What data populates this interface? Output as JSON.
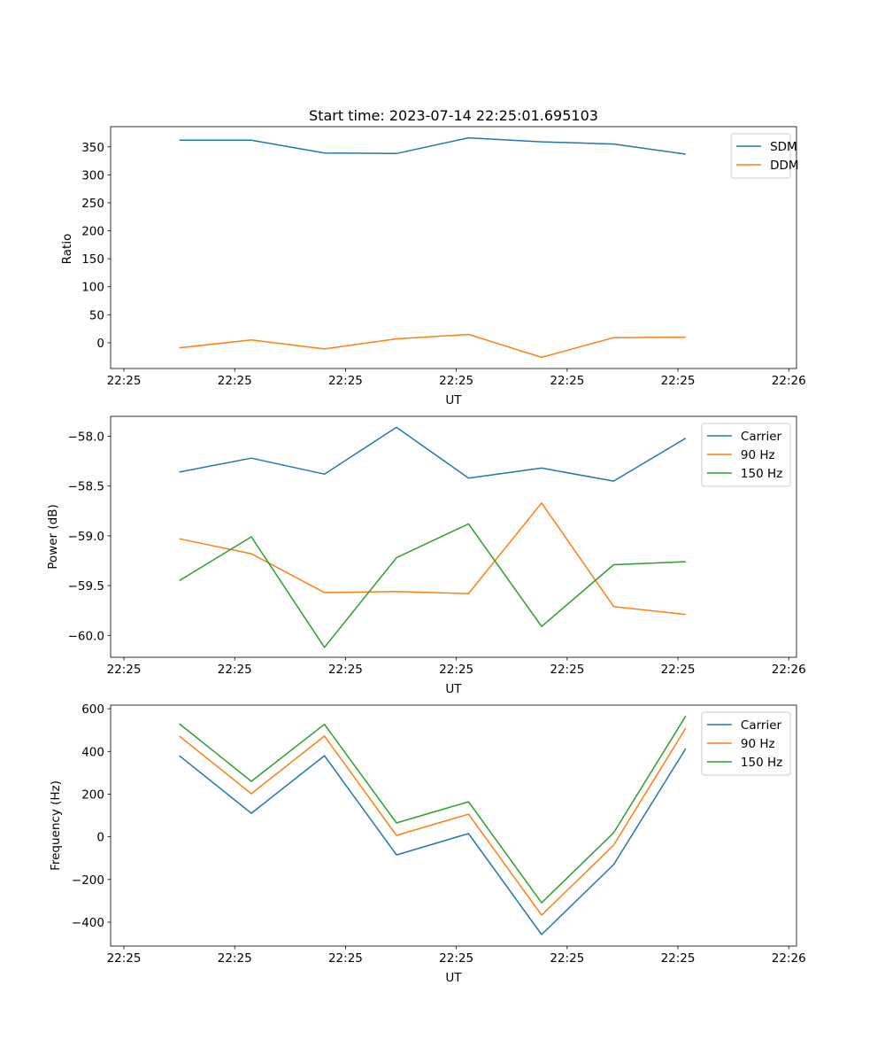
{
  "chart_data": [
    {
      "type": "line",
      "title": "Start time: 2023-07-14 22:25:01.695103",
      "xlabel": "UT",
      "ylabel": "Ratio",
      "x_unit": "seconds after 22:25:00",
      "x": [
        5.0,
        11.5,
        18.1,
        24.6,
        31.1,
        37.7,
        44.2,
        50.7
      ],
      "xlim": [
        -1.2,
        60.7
      ],
      "xticks": [
        0,
        10,
        20,
        30,
        40,
        50,
        60
      ],
      "xtick_labels": [
        "22:25",
        "22:25",
        "22:25",
        "22:25",
        "22:25",
        "22:25",
        "22:26"
      ],
      "ylim": [
        -46,
        386
      ],
      "yticks": [
        0,
        50,
        100,
        150,
        200,
        250,
        300,
        350
      ],
      "ytick_labels": [
        "0",
        "50",
        "100",
        "150",
        "200",
        "250",
        "300",
        "350"
      ],
      "legend": "top-right",
      "series": [
        {
          "name": "SDM",
          "color": "#1f77b4",
          "values": [
            362,
            362,
            339,
            338,
            366,
            359,
            355,
            337
          ]
        },
        {
          "name": "DDM",
          "color": "#ff7f0e",
          "values": [
            -9,
            5,
            -11,
            7,
            15,
            -26,
            9,
            10
          ]
        }
      ]
    },
    {
      "type": "line",
      "title": "",
      "xlabel": "UT",
      "ylabel": "Power (dB)",
      "x": [
        5.0,
        11.5,
        18.1,
        24.6,
        31.1,
        37.7,
        44.2,
        50.7
      ],
      "xlim": [
        -1.2,
        60.7
      ],
      "xticks": [
        0,
        10,
        20,
        30,
        40,
        50,
        60
      ],
      "xtick_labels": [
        "22:25",
        "22:25",
        "22:25",
        "22:25",
        "22:25",
        "22:25",
        "22:26"
      ],
      "ylim": [
        -60.22,
        -57.8
      ],
      "yticks": [
        -60.0,
        -59.5,
        -59.0,
        -58.5,
        -58.0
      ],
      "ytick_labels": [
        "−60.0",
        "−59.5",
        "−59.0",
        "−58.5",
        "−58.0"
      ],
      "legend": "top-right",
      "series": [
        {
          "name": "Carrier",
          "color": "#1f77b4",
          "values": [
            -58.36,
            -58.22,
            -58.38,
            -57.91,
            -58.42,
            -58.32,
            -58.45,
            -58.02
          ]
        },
        {
          "name": "90 Hz",
          "color": "#ff7f0e",
          "values": [
            -59.03,
            -59.18,
            -59.57,
            -59.56,
            -59.58,
            -58.67,
            -59.71,
            -59.79
          ]
        },
        {
          "name": "150 Hz",
          "color": "#2ca02c",
          "values": [
            -59.45,
            -59.01,
            -60.12,
            -59.22,
            -58.88,
            -59.91,
            -59.29,
            -59.26
          ]
        }
      ]
    },
    {
      "type": "line",
      "title": "",
      "xlabel": "UT",
      "ylabel": "Frequency (Hz)",
      "x": [
        5.0,
        11.5,
        18.1,
        24.6,
        31.1,
        37.7,
        44.2,
        50.7
      ],
      "xlim": [
        -1.2,
        60.7
      ],
      "xticks": [
        0,
        10,
        20,
        30,
        40,
        50,
        60
      ],
      "xtick_labels": [
        "22:25",
        "22:25",
        "22:25",
        "22:25",
        "22:25",
        "22:25",
        "22:26"
      ],
      "ylim": [
        -512,
        617
      ],
      "yticks": [
        -400,
        -200,
        0,
        200,
        400,
        600
      ],
      "ytick_labels": [
        "−400",
        "−200",
        "0",
        "200",
        "400",
        "600"
      ],
      "legend": "top-right",
      "series": [
        {
          "name": "Carrier",
          "color": "#1f77b4",
          "values": [
            380,
            110,
            380,
            -85,
            15,
            -458,
            -130,
            413
          ]
        },
        {
          "name": "90 Hz",
          "color": "#ff7f0e",
          "values": [
            472,
            202,
            472,
            7,
            106,
            -367,
            -39,
            509
          ]
        },
        {
          "name": "150 Hz",
          "color": "#2ca02c",
          "values": [
            530,
            260,
            527,
            65,
            164,
            -309,
            19,
            566
          ]
        }
      ]
    }
  ]
}
